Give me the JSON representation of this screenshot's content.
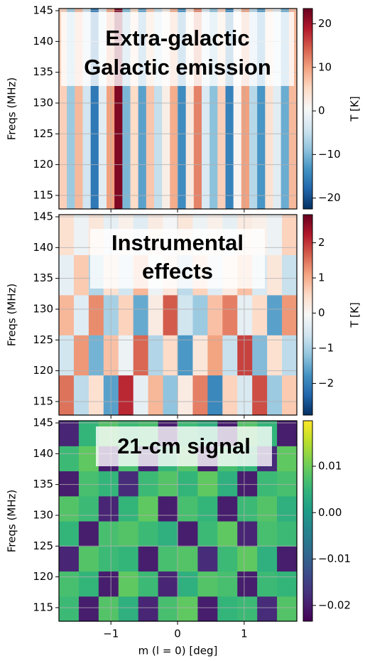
{
  "chart_data": [
    {
      "type": "heatmap",
      "colormap": "RdBu_r",
      "ylabel": "Freqs (MHz)",
      "ylim": [
        112.8,
        145.35
      ],
      "yticks": [
        115,
        120,
        125,
        130,
        135,
        140,
        145
      ],
      "annotation": [
        "Extra-galactic",
        "Galactic emission"
      ],
      "values": [
        6,
        -8,
        8,
        -4,
        -16,
        -2,
        10,
        22,
        -10,
        5,
        -12,
        7,
        -5,
        2,
        9,
        -14,
        3,
        12,
        -3,
        -9,
        6,
        -15,
        1,
        10,
        -6,
        -13,
        4,
        -2,
        -11,
        8
      ],
      "colorbar": {
        "label": "T [K]",
        "lim": [
          -22.5,
          23.5
        ],
        "ticks": [
          {
            "value": -20,
            "label": "−20"
          },
          {
            "value": -10,
            "label": "−10"
          },
          0,
          10,
          20
        ]
      }
    },
    {
      "type": "heatmap",
      "colormap": "RdBu_r",
      "ylabel": "Freqs (MHz)",
      "ylim": [
        112.8,
        145.35
      ],
      "yticks": [
        115,
        120,
        125,
        130,
        135,
        140,
        145
      ],
      "annotation": [
        "Instrumental",
        "effects"
      ],
      "z": [
        [
          1.5,
          -0.8,
          0.4,
          -1.6,
          2.1,
          -0.3,
          0.9,
          -1.2,
          0.2,
          1.4,
          -1.9,
          0.6,
          -0.5,
          1.8,
          -1.1,
          0.7
        ],
        [
          -0.6,
          1.2,
          -1.4,
          0.8,
          -0.2,
          1.6,
          -0.9,
          0.5,
          -1.7,
          0.3,
          1.1,
          -0.7,
          1.9,
          -1.3,
          0.4,
          -0.8
        ],
        [
          0.9,
          -0.4,
          1.3,
          -1.0,
          0.6,
          -1.5,
          0.2,
          1.7,
          -0.6,
          -1.1,
          0.8,
          1.4,
          -0.3,
          0.5,
          -1.6,
          1.2
        ],
        [
          -0.3,
          0.7,
          -0.9,
          0.4,
          -0.6,
          0.9,
          -0.2,
          0.3,
          -0.8,
          0.6,
          -0.4,
          0.2,
          0.8,
          -0.5,
          0.3,
          -0.7
        ],
        [
          0.4,
          -0.2,
          0.3,
          -0.3,
          0.1,
          -0.4,
          0.2,
          -0.1,
          0.3,
          -0.2,
          0.1,
          -0.3,
          0.2,
          0.1,
          -0.2,
          0.6
        ]
      ],
      "colorbar": {
        "label": "T [K]",
        "lim": [
          -2.9,
          2.8
        ],
        "ticks": [
          {
            "value": -2,
            "label": "−2"
          },
          {
            "value": -1,
            "label": "−1"
          },
          0,
          1,
          2
        ]
      }
    },
    {
      "type": "heatmap",
      "colormap": "viridis",
      "ylabel": "Freqs (MHz)",
      "ylim": [
        112.8,
        145.35
      ],
      "yticks": [
        115,
        120,
        125,
        130,
        135,
        140,
        145
      ],
      "xlabel": "m (l = 0) [deg]",
      "xlim": [
        -1.78,
        1.79
      ],
      "xticks": [
        {
          "value": -1,
          "label": "−1"
        },
        0,
        1
      ],
      "annotation": [
        "21-cm signal"
      ],
      "z": [
        [
          0.006,
          -0.02,
          0.008,
          0.004,
          -0.019,
          0.007,
          0.009,
          -0.02,
          0.005,
          0.006,
          -0.018,
          0.008
        ],
        [
          0.007,
          0.005,
          -0.02,
          0.009,
          0.006,
          -0.019,
          0.004,
          0.008,
          0.007,
          -0.02,
          0.006,
          0.005
        ],
        [
          -0.019,
          0.008,
          0.006,
          0.005,
          -0.02,
          0.007,
          0.008,
          -0.018,
          0.006,
          0.009,
          0.004,
          -0.02
        ],
        [
          0.005,
          -0.02,
          0.007,
          0.008,
          0.006,
          0.004,
          -0.02,
          0.006,
          0.009,
          -0.019,
          0.007,
          0.006
        ],
        [
          0.008,
          0.006,
          -0.019,
          0.005,
          0.009,
          -0.02,
          0.007,
          0.005,
          -0.02,
          0.006,
          0.008,
          0.004
        ],
        [
          -0.02,
          0.007,
          0.005,
          -0.018,
          0.006,
          0.008,
          0.005,
          0.009,
          0.004,
          -0.02,
          0.006,
          0.007
        ],
        [
          0.006,
          0.009,
          -0.02,
          0.007,
          -0.019,
          0.005,
          0.008,
          -0.02,
          0.007,
          0.005,
          -0.018,
          0.009
        ],
        [
          -0.019,
          0.005,
          0.008,
          0.006,
          0.007,
          -0.02,
          0.006,
          0.004,
          -0.02,
          0.008,
          0.005,
          -0.02
        ]
      ],
      "colorbar": {
        "lim": [
          -0.0234,
          0.0198
        ],
        "ticks": [
          {
            "value": -0.02,
            "label": "−0.02"
          },
          {
            "value": -0.01,
            "label": "−0.01"
          },
          {
            "value": 0,
            "label": "0.00"
          },
          0.01
        ]
      }
    }
  ]
}
